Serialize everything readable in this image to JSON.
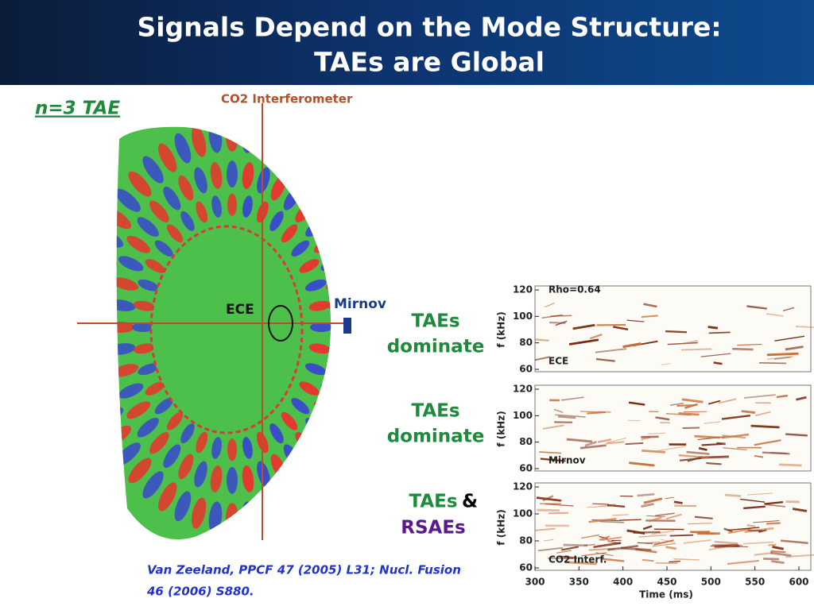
{
  "header": {
    "title_lines": [
      "Signals Depend on the Mode Structure:",
      "TAEs are Global"
    ]
  },
  "figure": {
    "mode_label": "n=3 TAE",
    "interferometer_label": "CO2 Interferometer",
    "ece_label": "ECE",
    "mirnov_label": "Mirnov"
  },
  "annotations": [
    {
      "lines": [
        "TAEs",
        "dominate"
      ]
    },
    {
      "lines": [
        "TAEs",
        "dominate"
      ]
    },
    {
      "lines": [
        "TAEs",
        "&",
        "RSAEs"
      ]
    }
  ],
  "spectrograms": {
    "panels": [
      {
        "labels": [
          "Rho=0.64",
          "ECE"
        ]
      },
      {
        "labels": [
          "Mirnov"
        ]
      },
      {
        "labels": [
          "CO2  Interf."
        ]
      }
    ],
    "y_label": "f  (kHz)",
    "yticks": [
      60,
      80,
      100,
      120
    ],
    "xticks": [
      300,
      350,
      400,
      450,
      500,
      550,
      600
    ],
    "x_label": "Time  (ms)"
  },
  "citation": [
    "Van Zeeland, PPCF 47 (2005) L31; Nucl. Fusion",
    "46 (2006) S880."
  ]
}
